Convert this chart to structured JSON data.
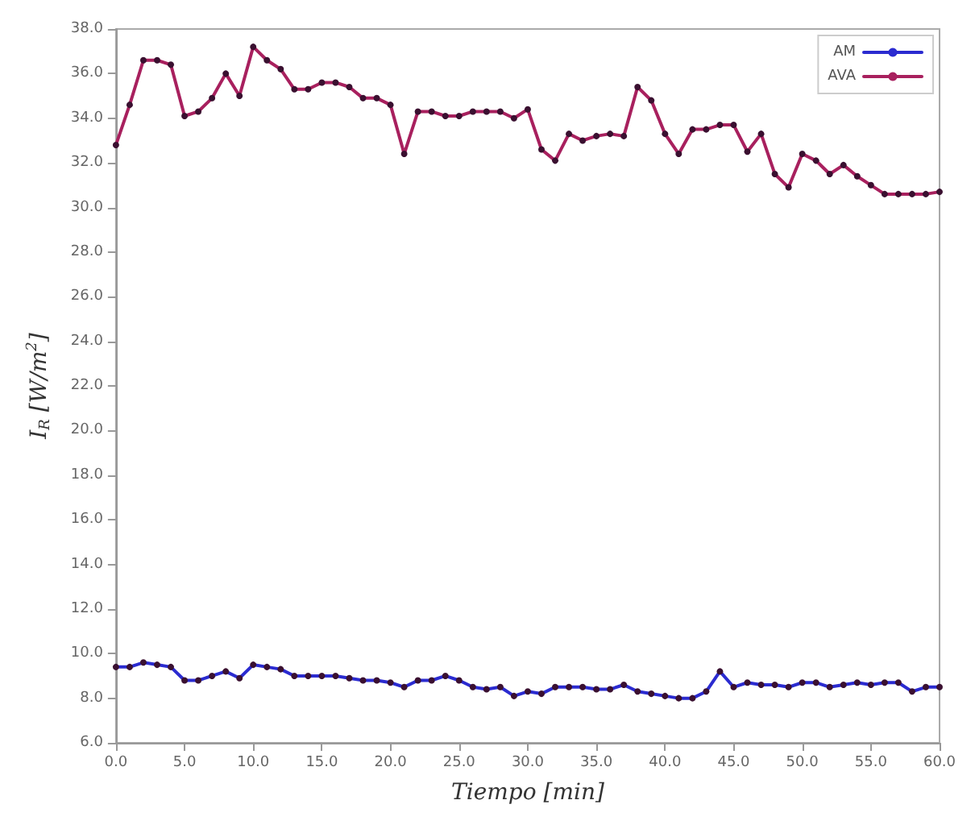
{
  "chart_data": {
    "type": "line",
    "xlabel": "Tiempo [min]",
    "ylabel": "I$_{R}$ [W/m$^{2}$]",
    "x": [
      0,
      1,
      2,
      3,
      4,
      5,
      6,
      7,
      8,
      9,
      10,
      11,
      12,
      13,
      14,
      15,
      16,
      17,
      18,
      19,
      20,
      21,
      22,
      23,
      24,
      25,
      26,
      27,
      28,
      29,
      30,
      31,
      32,
      33,
      34,
      35,
      36,
      37,
      38,
      39,
      40,
      41,
      42,
      43,
      44,
      45,
      46,
      47,
      48,
      49,
      50,
      51,
      52,
      53,
      54,
      55,
      56,
      57,
      58,
      59,
      60
    ],
    "series": [
      {
        "name": "AM",
        "color": "#2b2bd0",
        "values": [
          9.4,
          9.4,
          9.6,
          9.5,
          9.4,
          8.8,
          8.8,
          9.0,
          9.2,
          8.9,
          9.5,
          9.4,
          9.3,
          9.0,
          9.0,
          9.0,
          9.0,
          8.9,
          8.8,
          8.8,
          8.7,
          8.5,
          8.8,
          8.8,
          9.0,
          8.8,
          8.5,
          8.4,
          8.5,
          8.1,
          8.3,
          8.2,
          8.5,
          8.5,
          8.5,
          8.4,
          8.4,
          8.6,
          8.3,
          8.2,
          8.1,
          8.0,
          8.0,
          8.3,
          9.2,
          8.5,
          8.7,
          8.6,
          8.6,
          8.5,
          8.7,
          8.7,
          8.5,
          8.6,
          8.7,
          8.6,
          8.7,
          8.7,
          8.3,
          8.5,
          8.5
        ]
      },
      {
        "name": "AVA",
        "color": "#a8205e",
        "values": [
          32.8,
          34.6,
          36.6,
          36.6,
          36.4,
          34.1,
          34.3,
          34.9,
          36.0,
          35.0,
          37.2,
          36.6,
          36.2,
          35.3,
          35.3,
          35.6,
          35.6,
          35.4,
          34.9,
          34.9,
          34.6,
          32.4,
          34.3,
          34.3,
          34.1,
          34.1,
          34.3,
          34.3,
          34.3,
          34.0,
          34.4,
          32.6,
          32.1,
          33.3,
          33.0,
          33.2,
          33.3,
          33.2,
          35.4,
          34.8,
          33.3,
          32.4,
          33.5,
          33.5,
          33.7,
          33.7,
          32.5,
          33.3,
          31.5,
          30.9,
          32.4,
          32.1,
          31.5,
          31.9,
          31.4,
          31.0,
          30.6,
          30.6,
          30.6,
          30.6,
          30.7
        ]
      }
    ],
    "xlim": [
      0,
      60
    ],
    "xticks": [
      {
        "value": 0,
        "label": "0.0"
      },
      {
        "value": 5,
        "label": "5.0"
      },
      {
        "value": 10,
        "label": "10.0"
      },
      {
        "value": 15,
        "label": "15.0"
      },
      {
        "value": 20,
        "label": "20.0"
      },
      {
        "value": 25,
        "label": "25.0"
      },
      {
        "value": 30,
        "label": "30.0"
      },
      {
        "value": 35,
        "label": "35.0"
      },
      {
        "value": 40,
        "label": "40.0"
      },
      {
        "value": 45,
        "label": "45.0"
      },
      {
        "value": 50,
        "label": "50.0"
      },
      {
        "value": 55,
        "label": "55.0"
      },
      {
        "value": 60,
        "label": "60.0"
      }
    ],
    "ylim": [
      6,
      38
    ],
    "yticks": [
      {
        "value": 6,
        "label": "6.0"
      },
      {
        "value": 8,
        "label": "8.0"
      },
      {
        "value": 10,
        "label": "10.0"
      },
      {
        "value": 12,
        "label": "12.0"
      },
      {
        "value": 14,
        "label": "14.0"
      },
      {
        "value": 16,
        "label": "16.0"
      },
      {
        "value": 18,
        "label": "18.0"
      },
      {
        "value": 20,
        "label": "20.0"
      },
      {
        "value": 22,
        "label": "22.0"
      },
      {
        "value": 24,
        "label": "24.0"
      },
      {
        "value": 26,
        "label": "26.0"
      },
      {
        "value": 28,
        "label": "28.0"
      },
      {
        "value": 30,
        "label": "30.0"
      },
      {
        "value": 32,
        "label": "32.0"
      },
      {
        "value": 34,
        "label": "34.0"
      },
      {
        "value": 36,
        "label": "36.0"
      },
      {
        "value": 38,
        "label": "38.0"
      }
    ],
    "grid": false,
    "legend": "top right",
    "marker": "circle",
    "line_style": "solid"
  }
}
